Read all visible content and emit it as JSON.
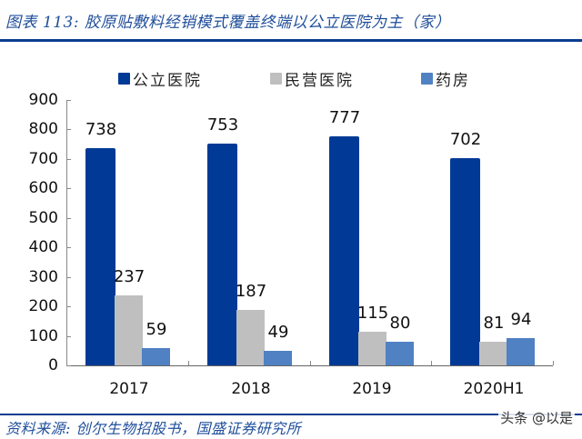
{
  "header": {
    "title": "图表 113: 胶原贴敷料经销模式覆盖终端以公立医院为主（家）"
  },
  "footer": {
    "source": "资料来源: 创尔生物招股书，国盛证券研究所",
    "watermark": "头条 @以是"
  },
  "colors": {
    "public_hospital": "#003a96",
    "private_hospital": "#bfbfbf",
    "pharmacy": "#4f81c3",
    "title_text": "#1f4e9a",
    "rule": "#0b3d91"
  },
  "legend": [
    {
      "label": "公立医院",
      "color": "#003a96"
    },
    {
      "label": "民营医院",
      "color": "#bfbfbf"
    },
    {
      "label": "药房",
      "color": "#4f81c3"
    }
  ],
  "yaxis": {
    "ticks": [
      "900",
      "800",
      "700",
      "600",
      "500",
      "400",
      "300",
      "200",
      "100",
      "0"
    ]
  },
  "chart_data": {
    "type": "bar",
    "title": "图表 113: 胶原贴敷料经销模式覆盖终端以公立医院为主（家）",
    "categories": [
      "2017",
      "2018",
      "2019",
      "2020H1"
    ],
    "series": [
      {
        "name": "公立医院",
        "values": [
          738,
          753,
          777,
          702
        ],
        "color": "#003a96"
      },
      {
        "name": "民营医院",
        "values": [
          237,
          187,
          115,
          81
        ],
        "color": "#bfbfbf"
      },
      {
        "name": "药房",
        "values": [
          59,
          49,
          80,
          94
        ],
        "color": "#4f81c3"
      }
    ],
    "xlabel": "",
    "ylabel": "",
    "ylim": [
      0,
      900
    ],
    "yticks": [
      0,
      100,
      200,
      300,
      400,
      500,
      600,
      700,
      800,
      900
    ],
    "grid": false,
    "legend_position": "top",
    "data_labels": true,
    "source": "资料来源: 创尔生物招股书，国盛证券研究所"
  }
}
